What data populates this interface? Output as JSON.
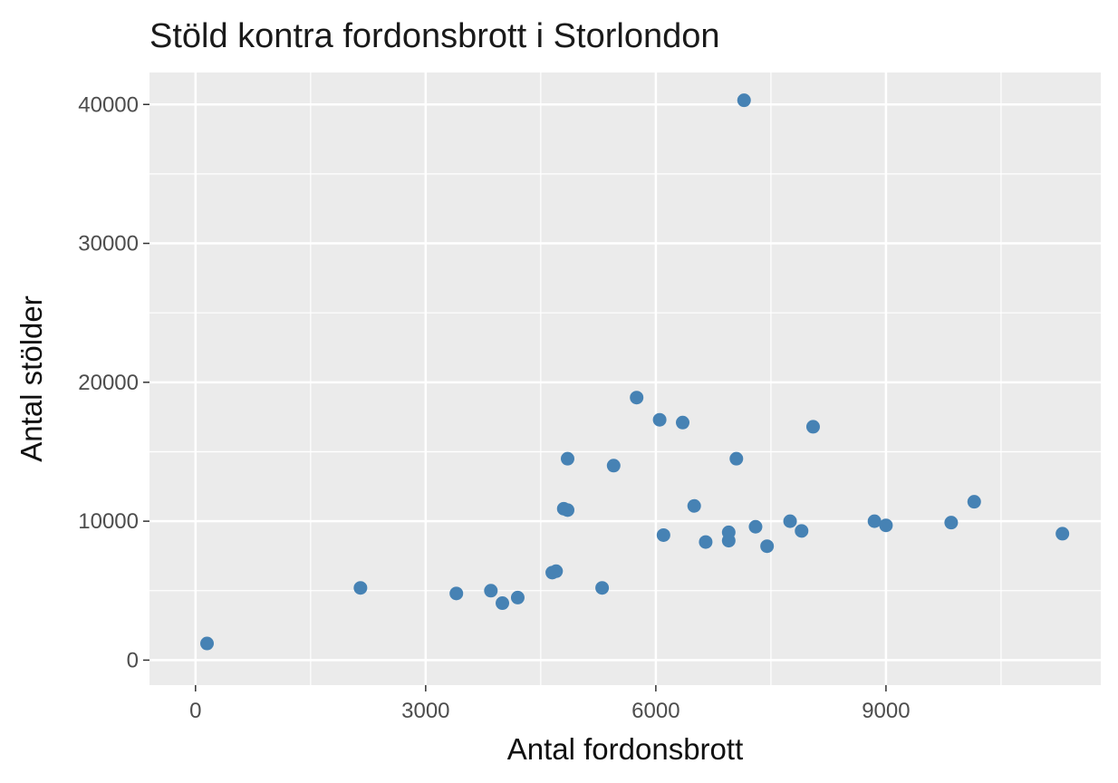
{
  "chart_data": {
    "type": "scatter",
    "title": "Stöld kontra fordonsbrott i Storlondon",
    "xlabel": "Antal fordonsbrott",
    "ylabel": "Antal stölder",
    "xlim": [
      -600,
      11800
    ],
    "ylim": [
      -1800,
      42300
    ],
    "x_ticks": [
      0,
      3000,
      6000,
      9000
    ],
    "y_ticks": [
      0,
      10000,
      20000,
      30000,
      40000
    ],
    "x_minor": [
      1500,
      4500,
      7500,
      10500
    ],
    "y_minor": [
      5000,
      15000,
      25000,
      35000
    ],
    "grid": true,
    "point_color": "#4682b4",
    "panel_color": "#ebebeb",
    "grid_color": "#ffffff",
    "points": [
      {
        "x": 150,
        "y": 1200
      },
      {
        "x": 2150,
        "y": 5200
      },
      {
        "x": 3400,
        "y": 4800
      },
      {
        "x": 3850,
        "y": 5000
      },
      {
        "x": 4000,
        "y": 4100
      },
      {
        "x": 4200,
        "y": 4500
      },
      {
        "x": 4650,
        "y": 6300
      },
      {
        "x": 4700,
        "y": 6400
      },
      {
        "x": 4800,
        "y": 10900
      },
      {
        "x": 4850,
        "y": 10800
      },
      {
        "x": 4850,
        "y": 14500
      },
      {
        "x": 5300,
        "y": 5200
      },
      {
        "x": 5450,
        "y": 14000
      },
      {
        "x": 5750,
        "y": 18900
      },
      {
        "x": 6050,
        "y": 17300
      },
      {
        "x": 6100,
        "y": 9000
      },
      {
        "x": 6350,
        "y": 17100
      },
      {
        "x": 6500,
        "y": 11100
      },
      {
        "x": 6650,
        "y": 8500
      },
      {
        "x": 6950,
        "y": 8600
      },
      {
        "x": 6950,
        "y": 9200
      },
      {
        "x": 7050,
        "y": 14500
      },
      {
        "x": 7150,
        "y": 40300
      },
      {
        "x": 7300,
        "y": 9600
      },
      {
        "x": 7450,
        "y": 8200
      },
      {
        "x": 7750,
        "y": 10000
      },
      {
        "x": 7900,
        "y": 9300
      },
      {
        "x": 8050,
        "y": 16800
      },
      {
        "x": 8850,
        "y": 10000
      },
      {
        "x": 9000,
        "y": 9700
      },
      {
        "x": 9850,
        "y": 9900
      },
      {
        "x": 10150,
        "y": 11400
      },
      {
        "x": 11300,
        "y": 9100
      }
    ]
  }
}
